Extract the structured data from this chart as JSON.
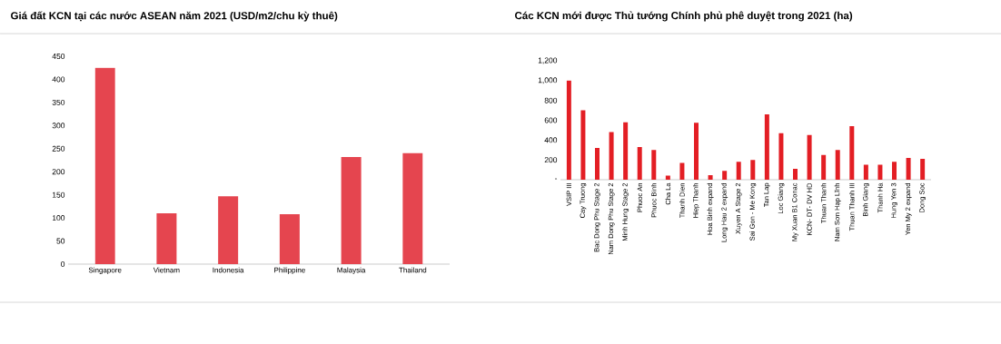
{
  "chart_data": [
    {
      "type": "bar",
      "title": "Giá đất KCN tại các nước ASEAN năm 2021 (USD/m2/chu kỳ thuê)",
      "categories": [
        "Singapore",
        "Vietnam",
        "Indonesia",
        "Philippine",
        "Malaysia",
        "Thailand"
      ],
      "values": [
        425,
        110,
        147,
        108,
        232,
        240
      ],
      "color": "#e5454f",
      "ylim": [
        0,
        450
      ],
      "yticks": [
        0,
        50,
        100,
        150,
        200,
        250,
        300,
        350,
        400,
        450
      ]
    },
    {
      "type": "bar",
      "title": "Các KCN mới được Thủ tướng Chính phủ phê duyệt trong 2021 (ha)",
      "categories": [
        "VSIP III",
        "Cay Truong",
        "Bac Dong Phu Stage 2",
        "Nam Dong Phu Stage 2",
        "Minh Hung Stage 2",
        "Phuoc An",
        "Phuoc Binh",
        "Cha La",
        "Thanh Dien",
        "Hiep Thanh",
        "Hoa Binh expand",
        "Long Hau 2 expand",
        "Xuyen A Stage 2",
        "Sai Gon - Me Kong",
        "Tan Lap",
        "Loc Giang",
        "My Xuan B1 Conac",
        "KCN- DT- DV HD",
        "Thuan Thanh",
        "Nam Sơn Hạp Lĩnh",
        "Thuan Thanh III",
        "Binh Giang",
        "Thanh Ha",
        "Hung Yen 3",
        "Yen My 2 expand",
        "Dong Soc"
      ],
      "values": [
        1000,
        700,
        320,
        480,
        580,
        330,
        300,
        40,
        170,
        575,
        45,
        90,
        180,
        200,
        660,
        470,
        110,
        450,
        250,
        300,
        540,
        150,
        150,
        180,
        220,
        210
      ],
      "color": "#e31e24",
      "ylim": [
        0,
        1200
      ],
      "yticks": [
        {
          "value": 0,
          "label": "-"
        },
        200,
        400,
        600,
        800,
        {
          "value": 1000,
          "label": "1,000"
        },
        {
          "value": 1200,
          "label": "1,200"
        }
      ]
    }
  ]
}
